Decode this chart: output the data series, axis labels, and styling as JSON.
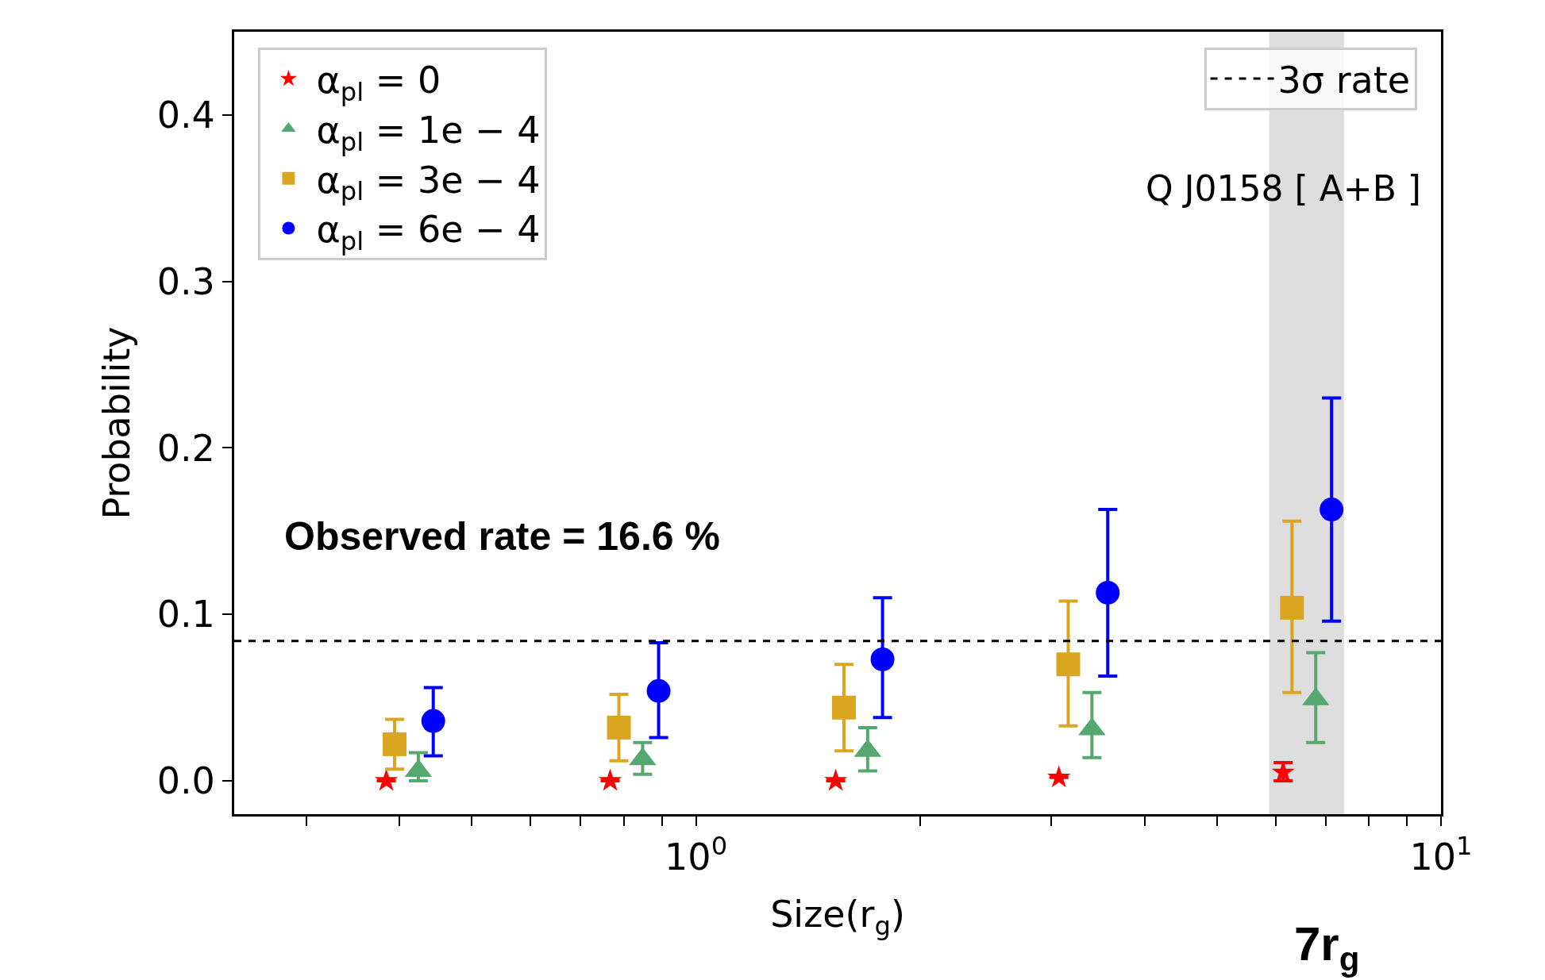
{
  "chart_data": {
    "type": "scatter",
    "xlabel": "Size(r$_{g}$)",
    "ylabel": "Probability",
    "log": "x",
    "xlim": [
      0.24,
      10
    ],
    "ylim": [
      -0.02,
      0.45
    ],
    "xticks": [
      {
        "value": 0.3,
        "label": null
      },
      {
        "value": 0.4,
        "label": null
      },
      {
        "value": 0.5,
        "label": null
      },
      {
        "value": 0.6,
        "label": null
      },
      {
        "value": 0.7,
        "label": null
      },
      {
        "value": 0.8,
        "label": null
      },
      {
        "value": 0.9,
        "label": null
      },
      {
        "value": 1,
        "label": "10$^{0}$"
      },
      {
        "value": 2,
        "label": null
      },
      {
        "value": 3,
        "label": null
      },
      {
        "value": 4,
        "label": null
      },
      {
        "value": 5,
        "label": null
      },
      {
        "value": 6,
        "label": null
      },
      {
        "value": 7,
        "label": null
      },
      {
        "value": 8,
        "label": null
      },
      {
        "value": 9,
        "label": null
      },
      {
        "value": 10,
        "label": "10$^{1}$"
      }
    ],
    "yticks": [
      {
        "value": 0,
        "label": "0.0"
      },
      0.1,
      0.2,
      0.3,
      0.4
    ],
    "grid": false,
    "legend": "top left",
    "series": [
      {
        "name": "α$_{pl}$ = 0",
        "color": "#ff0000",
        "marker": "star",
        "x": [
          0.384,
          0.767,
          1.54,
          3.07,
          6.14
        ],
        "values": [
          0,
          0,
          0,
          0.002,
          0.005
        ],
        "errors": [
          null,
          null,
          null,
          null,
          [
            0,
            0.011
          ]
        ]
      },
      {
        "name": "α$_{pl}$ = 1e − 4",
        "color": "#55a870",
        "marker": "triangle",
        "x": [
          0.424,
          0.848,
          1.7,
          3.4,
          6.79
        ],
        "values": [
          0.006,
          0.013,
          0.018,
          0.031,
          0.049
        ],
        "errors": [
          [
            0,
            0.017
          ],
          [
            0.004,
            0.023
          ],
          [
            0.006,
            0.032
          ],
          [
            0.014,
            0.053
          ],
          [
            0.023,
            0.077
          ]
        ]
      },
      {
        "name": "α$_{pl}$ = 3e − 4",
        "color": "#daa520",
        "marker": "square",
        "x": [
          0.394,
          0.788,
          1.58,
          3.16,
          6.31
        ],
        "values": [
          0.022,
          0.032,
          0.044,
          0.07,
          0.104
        ],
        "errors": [
          [
            0.007,
            0.037
          ],
          [
            0.012,
            0.052
          ],
          [
            0.018,
            0.07
          ],
          [
            0.033,
            0.108
          ],
          [
            0.053,
            0.156
          ]
        ]
      },
      {
        "name": "α$_{pl}$ = 6e − 4",
        "color": "#0000ff",
        "marker": "circle",
        "x": [
          0.444,
          0.891,
          1.78,
          3.57,
          7.13
        ],
        "values": [
          0.036,
          0.054,
          0.073,
          0.113,
          0.163
        ],
        "errors": [
          [
            0.015,
            0.056
          ],
          [
            0.026,
            0.083
          ],
          [
            0.038,
            0.11
          ],
          [
            0.063,
            0.163
          ],
          [
            0.096,
            0.23
          ]
        ]
      }
    ],
    "ref_lines": [
      {
        "axis": "y",
        "value": 0.084,
        "label": "3σ rate",
        "color": "#000000",
        "line_style": "dashed"
      }
    ],
    "bands": [
      {
        "axis": "x",
        "from": 5.88,
        "to": 7.41,
        "color": "#dedede"
      }
    ],
    "annotations": [
      "Q J0158 [ A+B ]",
      "Observed rate = 16.6 %",
      "7r$_{g}$"
    ]
  }
}
